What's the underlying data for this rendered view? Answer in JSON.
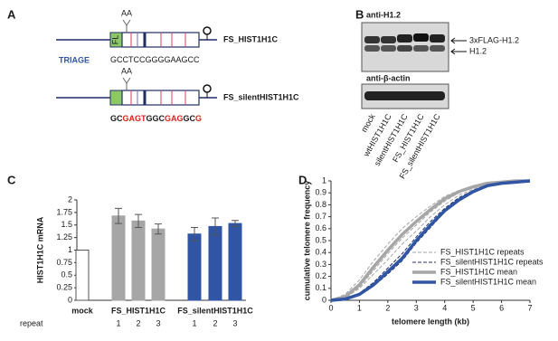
{
  "panel_a": {
    "label": "A",
    "constructs": [
      {
        "mark": "AA",
        "box_label": "FL",
        "name": "FS_HIST1H1C",
        "seq_label": "TRIAGE",
        "sequence": [
          {
            "text": "GCCTCCGGGGAAGCC",
            "color": "#1a1a1a"
          }
        ]
      },
      {
        "mark": "AA",
        "name": "FS_silentHIST1H1C",
        "sequence": [
          {
            "text": "GC",
            "color": "#1a1a1a"
          },
          {
            "text": "GAGT",
            "color": "#e0201b"
          },
          {
            "text": "GGC",
            "color": "#1a1a1a"
          },
          {
            "text": "GAG",
            "color": "#e0201b"
          },
          {
            "text": "GC",
            "color": "#1a1a1a"
          },
          {
            "text": "G",
            "color": "#e0201b"
          }
        ]
      }
    ]
  },
  "panel_b": {
    "label": "B",
    "top_blot": "anti-H1.2",
    "bottom_blot": "anti-β-actin",
    "bands": [
      "3xFLAG-H1.2",
      "H1.2"
    ],
    "lanes": [
      "mock",
      "wtHIST1H1C",
      "silentHIST1H1C",
      "FS_HIST1H1C",
      "FS_silentHIST1H1C"
    ]
  },
  "chart_data": [
    {
      "panel": "C",
      "type": "bar",
      "ylabel": "HIST1H1C mRNA",
      "categories": [
        "mock",
        "1",
        "2",
        "3",
        "1",
        "2",
        "3"
      ],
      "groups": [
        "FS_HIST1H1C",
        "FS_silentHIST1H1C"
      ],
      "row_label": "repeat",
      "values": [
        1,
        1.68,
        1.58,
        1.42,
        1.32,
        1.47,
        1.53
      ],
      "errors": [
        0,
        0.15,
        0.13,
        0.1,
        0.13,
        0.17,
        0.06
      ],
      "colors": [
        "#ffffff",
        "#a6a6a6",
        "#a6a6a6",
        "#a6a6a6",
        "#2f55a4",
        "#2f55a4",
        "#2f55a4"
      ],
      "ylim": [
        0,
        2
      ],
      "yticks": [
        0,
        0.25,
        0.5,
        0.75,
        1,
        1.25,
        1.5,
        1.75,
        2
      ]
    },
    {
      "panel": "D",
      "type": "line",
      "xlabel": "telomere length (kb)",
      "ylabel": "cumulative telomere frequency",
      "x": [
        0,
        0.5,
        1,
        1.5,
        2,
        2.5,
        3,
        3.5,
        4,
        4.5,
        5,
        5.5,
        6,
        6.5,
        7
      ],
      "xlim": [
        0,
        7
      ],
      "xticks": [
        0,
        1,
        2,
        3,
        4,
        5,
        6,
        7
      ],
      "ylim": [
        0,
        1
      ],
      "yticks": [
        0,
        0.1,
        0.2,
        0.3,
        0.4,
        0.5,
        0.6,
        0.7,
        0.8,
        0.9,
        1
      ],
      "series": [
        {
          "name": "FS_HIST1H1C repeats",
          "color": "#a6a6a6",
          "dash": true,
          "width": 1,
          "repeats": [
            [
              0,
              0.05,
              0.17,
              0.33,
              0.47,
              0.6,
              0.7,
              0.79,
              0.87,
              0.92,
              0.96,
              0.98,
              0.99,
              1,
              1
            ],
            [
              0,
              0.02,
              0.11,
              0.25,
              0.39,
              0.52,
              0.63,
              0.74,
              0.83,
              0.9,
              0.95,
              0.97,
              0.99,
              1,
              1
            ],
            [
              0,
              0.02,
              0.1,
              0.22,
              0.34,
              0.47,
              0.58,
              0.7,
              0.8,
              0.88,
              0.93,
              0.97,
              0.99,
              1,
              1
            ]
          ]
        },
        {
          "name": "FS_silentHIST1H1C repeats",
          "color": "#1f2f66",
          "dash": true,
          "width": 1,
          "repeats": [
            [
              0,
              0.01,
              0.06,
              0.15,
              0.27,
              0.39,
              0.53,
              0.66,
              0.77,
              0.86,
              0.92,
              0.96,
              0.98,
              0.99,
              1
            ],
            [
              0,
              0.01,
              0.04,
              0.12,
              0.22,
              0.33,
              0.48,
              0.61,
              0.74,
              0.83,
              0.9,
              0.95,
              0.98,
              0.99,
              1
            ],
            [
              0,
              0.01,
              0.05,
              0.12,
              0.23,
              0.34,
              0.49,
              0.62,
              0.75,
              0.84,
              0.91,
              0.96,
              0.98,
              1,
              1
            ]
          ]
        },
        {
          "name": "FS_HIST1H1C mean",
          "color": "#a6a6a6",
          "dash": false,
          "width": 3.5,
          "values": [
            0,
            0.03,
            0.13,
            0.28,
            0.42,
            0.55,
            0.66,
            0.76,
            0.85,
            0.91,
            0.95,
            0.98,
            0.99,
            1,
            1
          ]
        },
        {
          "name": "FS_silentHIST1H1C mean",
          "color": "#2f55a4",
          "dash": false,
          "width": 3.5,
          "values": [
            0,
            0.01,
            0.05,
            0.13,
            0.24,
            0.35,
            0.5,
            0.63,
            0.75,
            0.84,
            0.91,
            0.96,
            0.98,
            0.99,
            1
          ]
        }
      ]
    }
  ]
}
